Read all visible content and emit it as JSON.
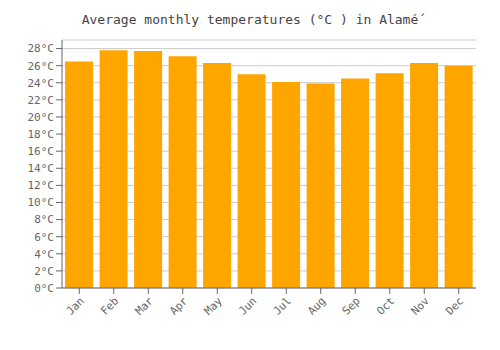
{
  "chart_data": {
    "type": "bar",
    "title": "Average monthly temperatures (°C ) in Alamé́",
    "categories": [
      "Jan",
      "Feb",
      "Mar",
      "Apr",
      "May",
      "Jun",
      "Jul",
      "Aug",
      "Sep",
      "Oct",
      "Nov",
      "Dec"
    ],
    "values": [
      26.5,
      27.8,
      27.7,
      27.1,
      26.3,
      25.0,
      24.1,
      23.9,
      24.5,
      25.1,
      26.3,
      26.0
    ],
    "color": "#FFA500",
    "ylim": [
      0,
      29
    ],
    "yticks": [
      {
        "value": 0,
        "label": "0°C"
      },
      {
        "value": 2,
        "label": "2°C"
      },
      {
        "value": 4,
        "label": "4°C"
      },
      {
        "value": 6,
        "label": "6°C"
      },
      {
        "value": 8,
        "label": "8°C"
      },
      {
        "value": 10,
        "label": "10°C"
      },
      {
        "value": 12,
        "label": "12°C"
      },
      {
        "value": 14,
        "label": "14°C"
      },
      {
        "value": 16,
        "label": "16°C"
      },
      {
        "value": 18,
        "label": "18°C"
      },
      {
        "value": 20,
        "label": "20°C"
      },
      {
        "value": 22,
        "label": "22°C"
      },
      {
        "value": 24,
        "label": "24°C"
      },
      {
        "value": 26,
        "label": "26°C"
      },
      {
        "value": 28,
        "label": "28°C"
      }
    ],
    "grid": true
  }
}
